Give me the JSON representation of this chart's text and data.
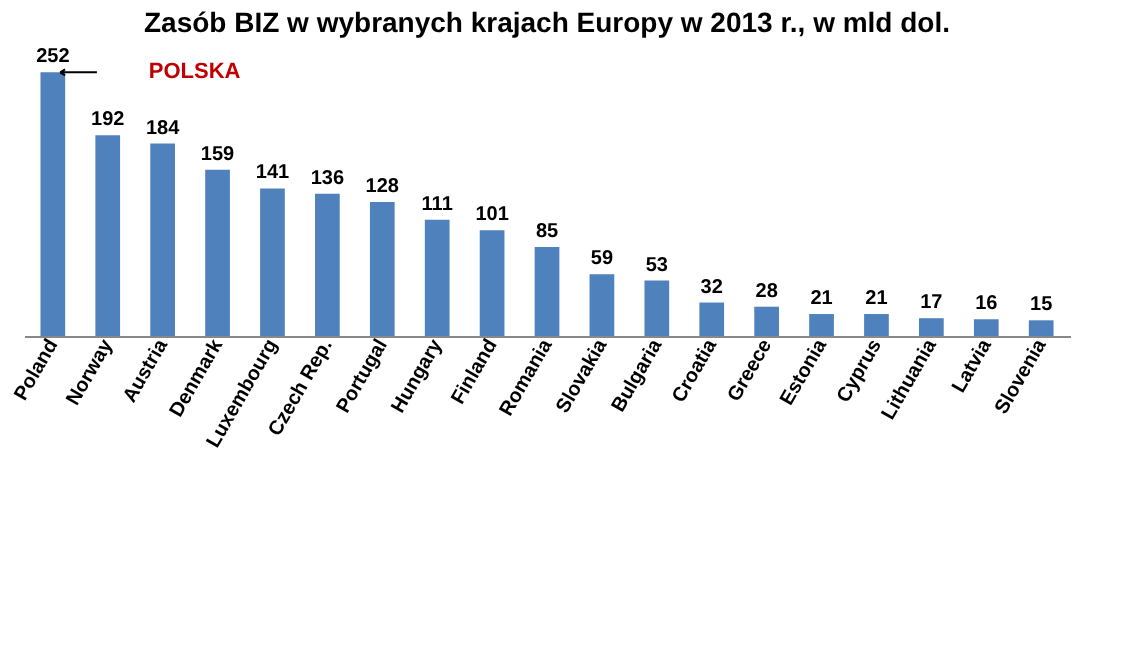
{
  "chart_data": {
    "type": "bar",
    "title": "Zasób BIZ w wybranych krajach Europy w 2013 r., w mld dol.",
    "categories": [
      "Poland",
      "Norway",
      "Austria",
      "Denmark",
      "Luxembourg",
      "Czech Rep.",
      "Portugal",
      "Hungary",
      "Finland",
      "Romania",
      "Slovakia",
      "Bulgaria",
      "Croatia",
      "Greece",
      "Estonia",
      "Cyprus",
      "Lithuania",
      "Latvia",
      "Slovenia"
    ],
    "values": [
      252,
      192,
      184,
      159,
      141,
      136,
      128,
      111,
      101,
      85,
      59,
      53,
      32,
      28,
      21,
      21,
      17,
      16,
      15
    ],
    "color": "#4f81bd",
    "data_labels": true,
    "grid": false,
    "annotations": [
      "POLSKA"
    ]
  }
}
